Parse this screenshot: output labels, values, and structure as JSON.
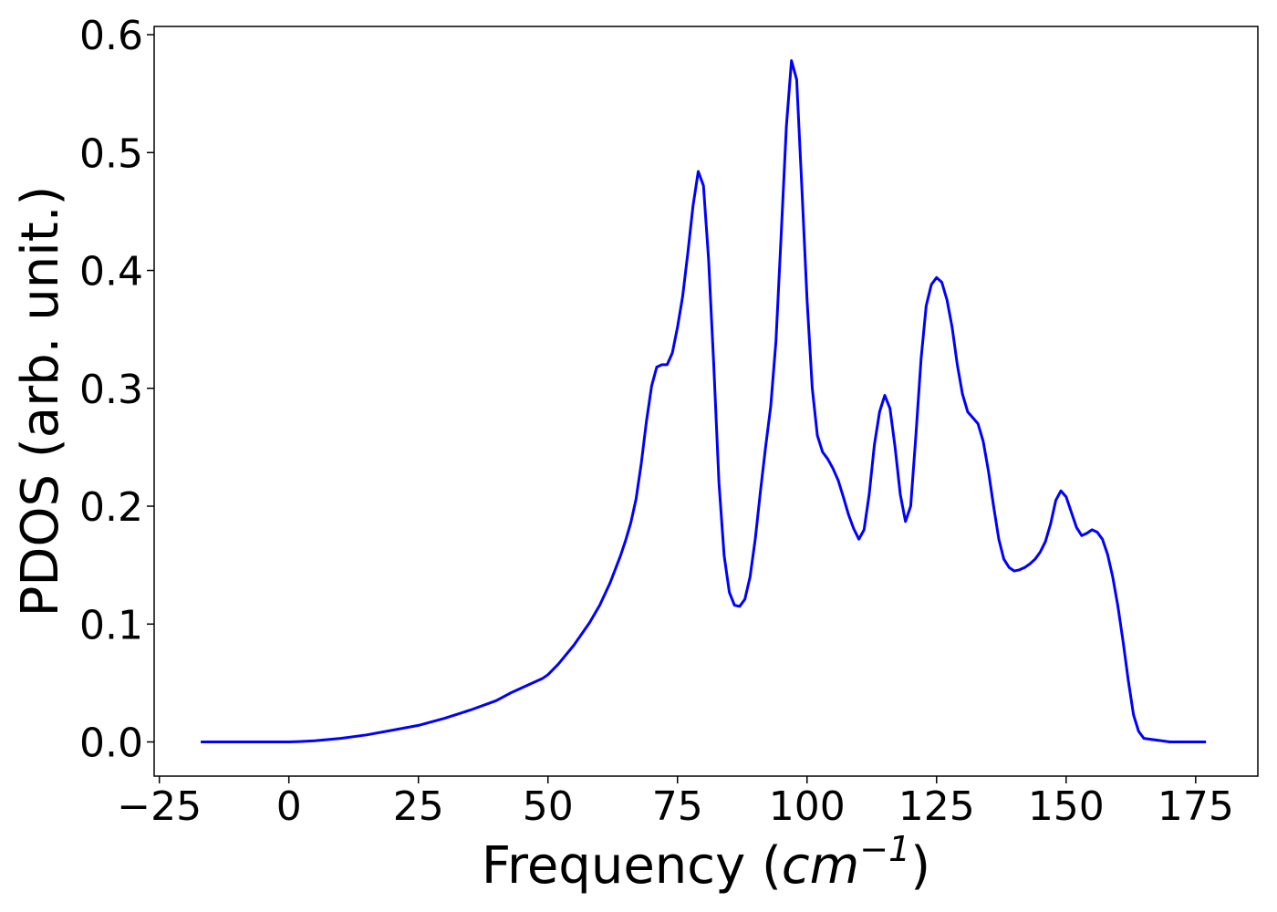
{
  "chart_data": {
    "type": "line",
    "title": "",
    "xlabel": {
      "prefix": "Frequency (",
      "unit_base": "cm",
      "unit_exp": "−1",
      "suffix": ")"
    },
    "ylabel": "PDOS (arb. unit.)",
    "xlim": [
      -26,
      187
    ],
    "ylim": [
      -0.029,
      0.607
    ],
    "xticks": [
      -25,
      0,
      25,
      50,
      75,
      100,
      125,
      150,
      175
    ],
    "xtick_labels": [
      "−25",
      "0",
      "25",
      "50",
      "75",
      "100",
      "125",
      "150",
      "175"
    ],
    "yticks": [
      0.0,
      0.1,
      0.2,
      0.3,
      0.4,
      0.5,
      0.6
    ],
    "ytick_labels": [
      "0.0",
      "0.1",
      "0.2",
      "0.3",
      "0.4",
      "0.5",
      "0.6"
    ],
    "grid": false,
    "legend": "none",
    "series": [
      {
        "color": "#0000ff",
        "x": [
          -17,
          -10,
          0,
          2,
          5,
          10,
          15,
          20,
          25,
          30,
          35,
          40,
          43,
          46,
          49,
          50,
          52,
          55,
          58,
          60,
          62,
          64,
          65,
          66,
          67,
          68,
          69,
          70,
          71,
          72,
          73,
          74,
          75,
          76,
          77,
          78,
          79,
          80,
          81,
          82,
          83,
          84,
          85,
          86,
          87,
          88,
          89,
          90,
          91,
          92,
          93,
          94,
          95,
          96,
          97,
          98,
          99,
          100,
          101,
          102,
          103,
          104,
          105,
          106,
          107,
          108,
          109,
          110,
          111,
          112,
          113,
          114,
          115,
          116,
          117,
          118,
          119,
          120,
          121,
          122,
          123,
          124,
          125,
          126,
          127,
          128,
          129,
          130,
          131,
          132,
          133,
          134,
          135,
          136,
          137,
          138,
          139,
          140,
          141,
          142,
          143,
          144,
          145,
          146,
          147,
          148,
          149,
          150,
          151,
          152,
          153,
          154,
          155,
          156,
          157,
          158,
          159,
          160,
          161,
          162,
          163,
          164,
          165,
          170,
          177
        ],
        "values": [
          0.0,
          0.0,
          0.0,
          0.0003,
          0.001,
          0.003,
          0.006,
          0.01,
          0.014,
          0.02,
          0.027,
          0.035,
          0.042,
          0.048,
          0.054,
          0.057,
          0.066,
          0.082,
          0.101,
          0.116,
          0.135,
          0.158,
          0.171,
          0.186,
          0.206,
          0.236,
          0.272,
          0.302,
          0.318,
          0.32,
          0.32,
          0.33,
          0.352,
          0.378,
          0.415,
          0.455,
          0.484,
          0.472,
          0.41,
          0.32,
          0.22,
          0.158,
          0.127,
          0.116,
          0.115,
          0.121,
          0.14,
          0.172,
          0.212,
          0.25,
          0.285,
          0.34,
          0.43,
          0.522,
          0.578,
          0.562,
          0.47,
          0.375,
          0.3,
          0.26,
          0.246,
          0.24,
          0.232,
          0.222,
          0.208,
          0.193,
          0.181,
          0.172,
          0.18,
          0.21,
          0.252,
          0.28,
          0.294,
          0.283,
          0.25,
          0.21,
          0.187,
          0.2,
          0.26,
          0.325,
          0.37,
          0.388,
          0.394,
          0.39,
          0.375,
          0.352,
          0.32,
          0.295,
          0.28,
          0.275,
          0.27,
          0.255,
          0.23,
          0.2,
          0.172,
          0.155,
          0.148,
          0.145,
          0.146,
          0.148,
          0.151,
          0.155,
          0.161,
          0.17,
          0.185,
          0.205,
          0.213,
          0.208,
          0.195,
          0.182,
          0.175,
          0.177,
          0.18,
          0.178,
          0.172,
          0.159,
          0.14,
          0.115,
          0.085,
          0.052,
          0.023,
          0.009,
          0.003,
          0.0,
          0.0
        ]
      }
    ]
  }
}
